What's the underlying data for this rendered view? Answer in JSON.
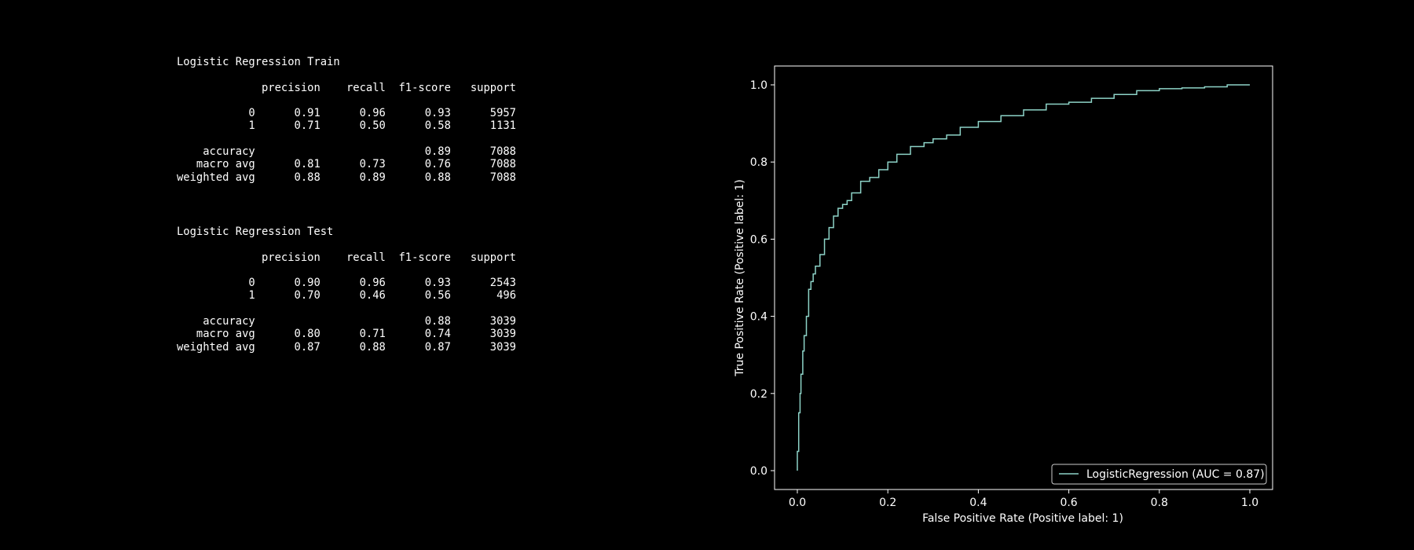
{
  "reports": {
    "train": {
      "title": "Logistic Regression Train",
      "header": [
        "precision",
        "recall",
        "f1-score",
        "support"
      ],
      "rows": [
        [
          "0",
          "0.91",
          "0.96",
          "0.93",
          "5957"
        ],
        [
          "1",
          "0.71",
          "0.50",
          "0.58",
          "1131"
        ],
        [],
        [
          "accuracy",
          "",
          "",
          "0.89",
          "7088"
        ],
        [
          "macro avg",
          "0.81",
          "0.73",
          "0.76",
          "7088"
        ],
        [
          "weighted avg",
          "0.88",
          "0.89",
          "0.88",
          "7088"
        ]
      ]
    },
    "test": {
      "title": "Logistic Regression Test",
      "header": [
        "precision",
        "recall",
        "f1-score",
        "support"
      ],
      "rows": [
        [
          "0",
          "0.90",
          "0.96",
          "0.93",
          "2543"
        ],
        [
          "1",
          "0.70",
          "0.46",
          "0.56",
          "496"
        ],
        [],
        [
          "accuracy",
          "",
          "",
          "0.88",
          "3039"
        ],
        [
          "macro avg",
          "0.80",
          "0.71",
          "0.74",
          "3039"
        ],
        [
          "weighted avg",
          "0.87",
          "0.88",
          "0.87",
          "3039"
        ]
      ]
    }
  },
  "chart_data": {
    "type": "line",
    "xlabel": "False Positive Rate (Positive label: 1)",
    "ylabel": "True Positive Rate (Positive label: 1)",
    "xlim": [
      -0.05,
      1.05
    ],
    "ylim": [
      -0.05,
      1.05
    ],
    "xticks": [
      "0.0",
      "0.2",
      "0.4",
      "0.6",
      "0.8",
      "1.0"
    ],
    "yticks": [
      "0.0",
      "0.2",
      "0.4",
      "0.6",
      "0.8",
      "1.0"
    ],
    "grid": false,
    "legend_position": "lower-right",
    "series": [
      {
        "name": "LogisticRegression (AUC = 0.87)",
        "color": "#8dd3c7",
        "x": [
          0.0,
          0.0,
          0.003,
          0.006,
          0.008,
          0.012,
          0.015,
          0.02,
          0.025,
          0.03,
          0.035,
          0.04,
          0.05,
          0.06,
          0.07,
          0.08,
          0.09,
          0.1,
          0.11,
          0.12,
          0.14,
          0.16,
          0.18,
          0.2,
          0.22,
          0.25,
          0.28,
          0.3,
          0.33,
          0.36,
          0.4,
          0.45,
          0.5,
          0.55,
          0.6,
          0.65,
          0.7,
          0.75,
          0.8,
          0.85,
          0.9,
          0.95,
          1.0
        ],
        "y": [
          0.0,
          0.05,
          0.15,
          0.2,
          0.25,
          0.31,
          0.35,
          0.4,
          0.47,
          0.49,
          0.51,
          0.53,
          0.56,
          0.6,
          0.63,
          0.66,
          0.68,
          0.69,
          0.7,
          0.72,
          0.75,
          0.76,
          0.78,
          0.8,
          0.82,
          0.84,
          0.85,
          0.86,
          0.87,
          0.89,
          0.905,
          0.92,
          0.935,
          0.95,
          0.955,
          0.965,
          0.975,
          0.985,
          0.99,
          0.992,
          0.995,
          1.0,
          1.0
        ]
      }
    ]
  }
}
